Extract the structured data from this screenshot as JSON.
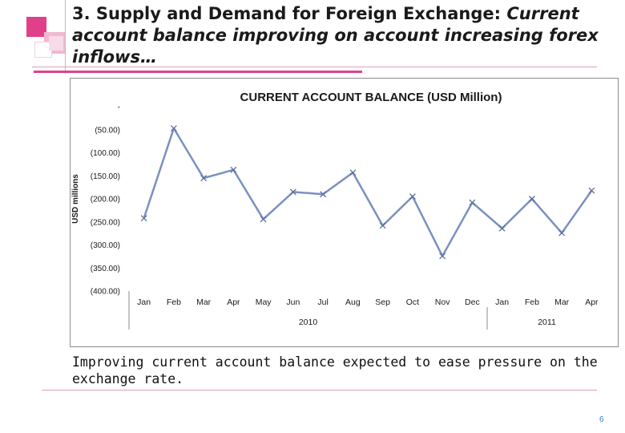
{
  "slide": {
    "title_main": "3. Supply and Demand for Foreign Exchange: ",
    "title_italic": "Current account balance improving on account increasing forex inflows…",
    "caption": "Improving current account balance expected to ease pressure on the exchange rate.",
    "page_number": "6"
  },
  "colors": {
    "accent_pink": "#e0408a",
    "accent_light_pink": "#f2b8d2",
    "line_series": "#7b90c0",
    "rule": "#d9a0c0",
    "page_number": "#3a7bd5"
  },
  "chart_data": {
    "type": "line",
    "title": "CURRENT ACCOUNT BALANCE (USD Million)",
    "xlabel": "",
    "ylabel": "USD millions",
    "y_ticks": [
      "-",
      "(50.00)",
      "(100.00)",
      "(150.00)",
      "(200.00)",
      "(250.00)",
      "(300.00)",
      "(350.00)",
      "(400.00)"
    ],
    "y_tick_values": [
      0,
      -50,
      -100,
      -150,
      -200,
      -250,
      -300,
      -350,
      -400
    ],
    "ylim": [
      -400,
      0
    ],
    "categories": [
      "Jan",
      "Feb",
      "Mar",
      "Apr",
      "May",
      "Jun",
      "Jul",
      "Aug",
      "Sep",
      "Oct",
      "Nov",
      "Dec",
      "Jan",
      "Feb",
      "Mar",
      "Apr"
    ],
    "groups": [
      {
        "label": "2010",
        "start": 0,
        "end": 11
      },
      {
        "label": "2011",
        "start": 12,
        "end": 15
      }
    ],
    "series": [
      {
        "values": [
          -242,
          -47,
          -155,
          -137,
          -244,
          -185,
          -190,
          -143,
          -258,
          -195,
          -324,
          -208,
          -264,
          -200,
          -274,
          -182
        ]
      }
    ],
    "legend": "none",
    "grid": false
  }
}
